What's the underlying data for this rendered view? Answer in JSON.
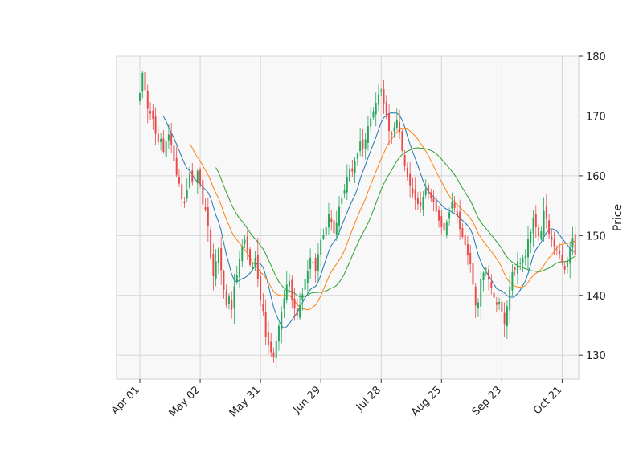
{
  "chart_data": {
    "type": "candlestick",
    "title": "",
    "ylabel": "Price",
    "ylim": [
      126,
      180
    ],
    "yticks": [
      130,
      140,
      150,
      160,
      170,
      180
    ],
    "xticks": [
      {
        "label": "Apr 01",
        "index": 0
      },
      {
        "label": "May 02",
        "index": 23
      },
      {
        "label": "May 31",
        "index": 46
      },
      {
        "label": "Jun 29",
        "index": 69
      },
      {
        "label": "Jul 28",
        "index": 92
      },
      {
        "label": "Aug 25",
        "index": 115
      },
      {
        "label": "Sep 23",
        "index": 138
      },
      {
        "label": "Oct 21",
        "index": 161
      }
    ],
    "grid": true,
    "colors": {
      "up": "#26a65b",
      "down": "#e84a4a",
      "background": "#f8f8f8",
      "grid": "#d6d6d6"
    },
    "moving_averages": [
      {
        "period": 10,
        "color": "#1f77b4"
      },
      {
        "period": 20,
        "color": "#ff7f0e"
      },
      {
        "period": 30,
        "color": "#2ca02c"
      }
    ],
    "closes": [
      173.8,
      177.2,
      174.3,
      171.2,
      170.4,
      169.5,
      167.0,
      165.6,
      166.2,
      164.0,
      165.8,
      166.9,
      165.2,
      162.4,
      160.1,
      158.7,
      156.1,
      155.4,
      157.7,
      160.3,
      158.9,
      159.5,
      160.8,
      158.6,
      155.2,
      154.3,
      151.6,
      146.3,
      143.2,
      145.7,
      147.8,
      144.2,
      140.9,
      138.4,
      139.8,
      137.6,
      141.5,
      143.4,
      146.1,
      148.2,
      149.3,
      147.5,
      145.1,
      144.7,
      146.3,
      142.8,
      139.2,
      137.4,
      133.1,
      131.6,
      130.5,
      129.7,
      132.3,
      134.9,
      137.1,
      139.5,
      141.8,
      142.4,
      139.3,
      137.8,
      136.6,
      138.4,
      140.2,
      142.7,
      144.1,
      146.3,
      145.5,
      144.1,
      146.9,
      149.3,
      150.1,
      151.4,
      153.6,
      152.2,
      150.4,
      152.1,
      154.8,
      156.3,
      157.6,
      159.8,
      161.2,
      160.7,
      162.5,
      163.7,
      165.9,
      164.4,
      166.1,
      168.3,
      169.6,
      170.8,
      172.2,
      173.6,
      174.3,
      172.1,
      169.8,
      167.5,
      166.9,
      168.1,
      169.4,
      167.3,
      164.2,
      161.6,
      159.7,
      158.4,
      157.1,
      156.0,
      155.3,
      154.9,
      156.5,
      157.8,
      157.1,
      156.2,
      155.6,
      154.0,
      152.5,
      151.4,
      150.8,
      152.3,
      153.9,
      155.7,
      154.6,
      153.2,
      151.1,
      149.8,
      148.4,
      146.7,
      145.2,
      141.8,
      138.3,
      138.8,
      142.7,
      143.8,
      144.5,
      142.6,
      141.2,
      139.6,
      138.4,
      138.9,
      137.3,
      135.1,
      138.2,
      141.5,
      143.9,
      144.3,
      145.7,
      145.4,
      146.3,
      146.6,
      149.5,
      150.6,
      152.9,
      151.4,
      149.9,
      150.7,
      154.1,
      152.8,
      150.3,
      149.3,
      148.2,
      147.4,
      146.9,
      145.5,
      144.3,
      145.8,
      147.9,
      149.6,
      146.8
    ]
  }
}
